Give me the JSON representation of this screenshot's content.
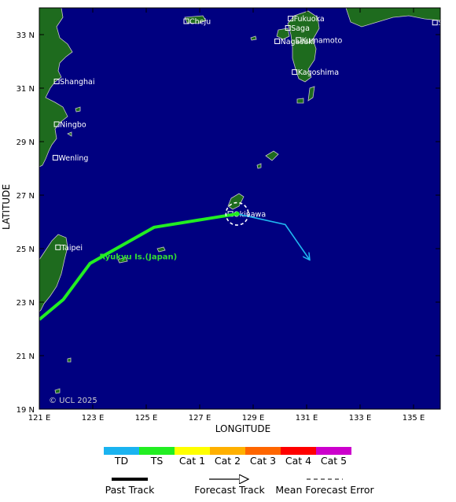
{
  "map": {
    "xlabel": "LONGITUDE",
    "ylabel": "LATITUDE",
    "lon_range": [
      121,
      136
    ],
    "lat_range": [
      19,
      34
    ],
    "x_ticks": [
      {
        "value": 121,
        "label": "121 E"
      },
      {
        "value": 123,
        "label": "123 E"
      },
      {
        "value": 125,
        "label": "125 E"
      },
      {
        "value": 127,
        "label": "127 E"
      },
      {
        "value": 129,
        "label": "129 E"
      },
      {
        "value": 131,
        "label": "131 E"
      },
      {
        "value": 133,
        "label": "133 E"
      },
      {
        "value": 135,
        "label": "135 E"
      }
    ],
    "y_ticks": [
      {
        "value": 33,
        "label": "33 N"
      },
      {
        "value": 31,
        "label": "31 N"
      },
      {
        "value": 29,
        "label": "29 N"
      },
      {
        "value": 27,
        "label": "27 N"
      },
      {
        "value": 25,
        "label": "25 N"
      },
      {
        "value": 23,
        "label": "23 N"
      },
      {
        "value": 21,
        "label": "21 N"
      },
      {
        "value": 19,
        "label": "19 N"
      }
    ],
    "colors": {
      "ocean": "#000080",
      "land": "#1e6b1e",
      "coast": "#c8c8c8",
      "past_track": "#22ee22",
      "forecast_track": "#20b8f0",
      "error_circle": "#ffffff"
    },
    "cities": [
      {
        "name": "Cheju",
        "lon": 126.5,
        "lat": 33.5
      },
      {
        "name": "Fukuoka",
        "lon": 130.4,
        "lat": 33.6
      },
      {
        "name": "Saga",
        "lon": 130.3,
        "lat": 33.25
      },
      {
        "name": "Nagasaki",
        "lon": 129.9,
        "lat": 32.75
      },
      {
        "name": "Kumamoto",
        "lon": 130.7,
        "lat": 32.8
      },
      {
        "name": "Shiono-misaki",
        "lon": 135.8,
        "lat": 33.45
      },
      {
        "name": "Kagoshima",
        "lon": 130.55,
        "lat": 31.6
      },
      {
        "name": "Shanghai",
        "lon": 121.65,
        "lat": 31.25
      },
      {
        "name": "Ningbo",
        "lon": 121.65,
        "lat": 29.65
      },
      {
        "name": "Wenling",
        "lon": 121.6,
        "lat": 28.4
      },
      {
        "name": "Okinawa",
        "lon": 128.15,
        "lat": 26.3
      },
      {
        "name": "Taipei",
        "lon": 121.7,
        "lat": 25.05
      }
    ],
    "region_label": {
      "text": "Ryukyu Is.(Japan)",
      "lon": 124.7,
      "lat": 24.6
    },
    "copyright": "© UCL 2025"
  },
  "chart_data": {
    "type": "line",
    "xlabel": "LONGITUDE",
    "ylabel": "LATITUDE",
    "xlim": [
      121,
      136
    ],
    "ylim": [
      19,
      34
    ],
    "series": [
      {
        "name": "Past Track",
        "category": "TS",
        "points": [
          [
            121.0,
            22.35
          ],
          [
            121.9,
            23.1
          ],
          [
            122.9,
            24.45
          ],
          [
            125.3,
            25.8
          ],
          [
            128.4,
            26.3
          ]
        ]
      },
      {
        "name": "Forecast Track",
        "category": "TD",
        "points": [
          [
            128.4,
            26.3
          ],
          [
            130.2,
            25.9
          ],
          [
            131.1,
            24.6
          ]
        ]
      }
    ],
    "current_position": {
      "lon": 128.4,
      "lat": 26.3
    },
    "forecast_error_radius_deg": 0.42
  },
  "legend": {
    "categories": [
      {
        "label": "TD",
        "color": "#1ab3f0"
      },
      {
        "label": "TS",
        "color": "#22ee22"
      },
      {
        "label": "Cat 1",
        "color": "#ffff00"
      },
      {
        "label": "Cat 2",
        "color": "#ffb000"
      },
      {
        "label": "Cat 3",
        "color": "#ff6600"
      },
      {
        "label": "Cat 4",
        "color": "#ff0000"
      },
      {
        "label": "Cat 5",
        "color": "#cc00cc"
      }
    ],
    "keys": [
      {
        "label": "Past Track",
        "style": "past"
      },
      {
        "label": "Forecast Track",
        "style": "forecast"
      },
      {
        "label": "Mean Forecast Error",
        "style": "error"
      }
    ]
  }
}
